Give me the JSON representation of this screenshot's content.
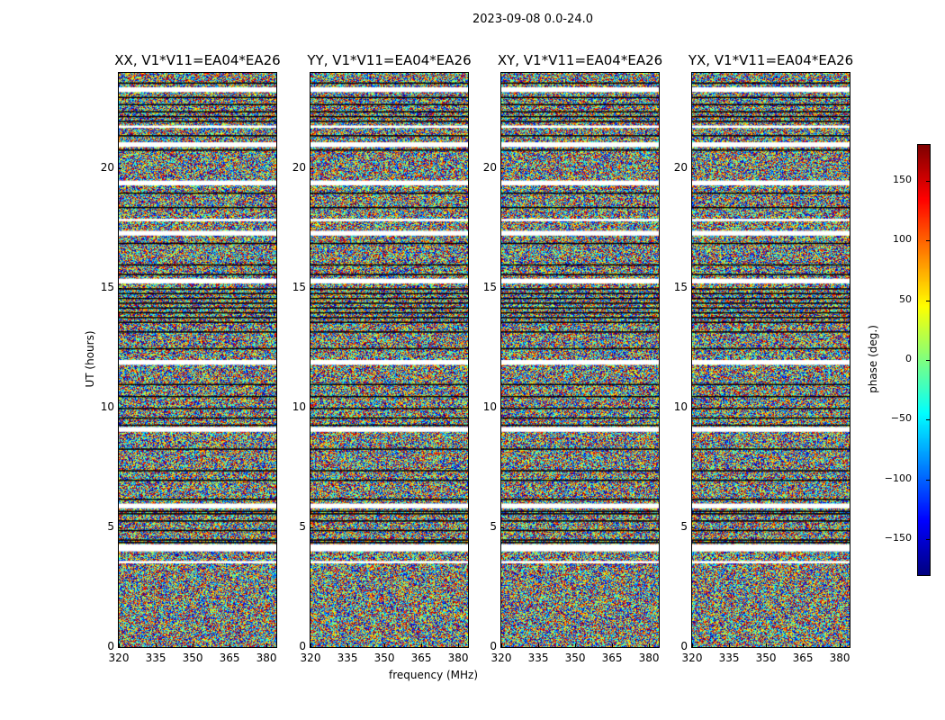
{
  "chart_data": {
    "type": "heatmap",
    "title": "2023-09-08 0.0-24.0",
    "xlabel": "frequency (MHz)",
    "ylabel": "UT (hours)",
    "xlim": [
      320,
      384
    ],
    "ylim": [
      0,
      24
    ],
    "xticks": [
      "320",
      "335",
      "350",
      "365",
      "380"
    ],
    "xtick_values": [
      320,
      335,
      350,
      365,
      380
    ],
    "yticks": [
      "0",
      "5",
      "10",
      "15",
      "20"
    ],
    "ytick_values": [
      0,
      5,
      10,
      15,
      20
    ],
    "panels": [
      {
        "title": "XX, V1*V11=EA04*EA26"
      },
      {
        "title": "YY, V1*V11=EA04*EA26"
      },
      {
        "title": "XY, V1*V11=EA04*EA26"
      },
      {
        "title": "YX, V1*V11=EA04*EA26"
      }
    ],
    "values_description": "random phase noise across all channels",
    "flagged_white_hours": [
      [
        23.2,
        23.4
      ],
      [
        21.7,
        21.8
      ],
      [
        20.9,
        21.1
      ],
      [
        19.3,
        19.5
      ],
      [
        17.8,
        17.9
      ],
      [
        17.2,
        17.4
      ],
      [
        15.2,
        15.4
      ],
      [
        11.8,
        12.0
      ],
      [
        9.0,
        9.2
      ],
      [
        5.8,
        6.0
      ],
      [
        4.0,
        4.3
      ],
      [
        3.5,
        3.6
      ]
    ],
    "flagged_black_hours": [
      23.6,
      23.0,
      22.7,
      22.4,
      22.2,
      22.0,
      21.4,
      20.8,
      19.0,
      18.4,
      16.9,
      16.0,
      15.6,
      15.0,
      14.8,
      14.6,
      14.4,
      14.2,
      14.0,
      13.8,
      13.6,
      13.2,
      12.5,
      11.0,
      10.5,
      10.0,
      9.6,
      9.3,
      8.3,
      7.4,
      7.0,
      6.2,
      5.7,
      5.6,
      5.3,
      4.9,
      4.5,
      4.4
    ],
    "colorbar": {
      "label": "phase (deg.)",
      "range": [
        -180,
        180
      ],
      "ticks": [
        "150",
        "100",
        "50",
        "0",
        "−50",
        "−100",
        "−150"
      ],
      "tick_values": [
        150,
        100,
        50,
        0,
        -50,
        -100,
        -150
      ],
      "colormap": "jet"
    }
  }
}
